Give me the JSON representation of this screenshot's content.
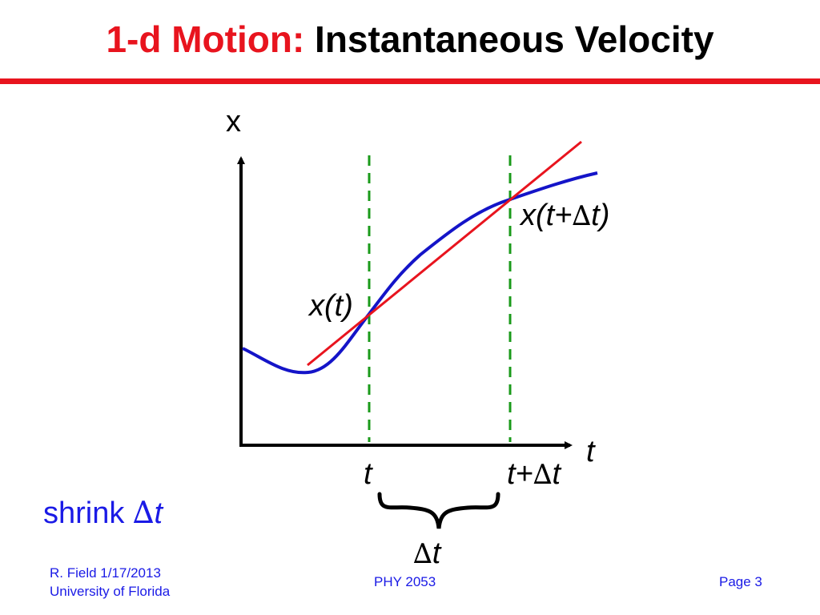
{
  "slide": {
    "title_colored": "1-d Motion:",
    "title_rest": "Instantaneous Velocity",
    "accent_color": "#e8141e",
    "footer_color": "#1a1ae6"
  },
  "diagram": {
    "x_axis_label": "t",
    "y_axis_label": "x",
    "point_label_t": "x(t)",
    "point_label_tdt": "x(t+",
    "point_label_tdt_delta": "∆",
    "point_label_tdt_end": "t)",
    "tick_t": "t",
    "tick_tdt_pre": "t+",
    "tick_tdt_delta": "∆",
    "tick_tdt_post": "t",
    "brace_label_delta": "∆",
    "brace_label_t": "t",
    "curve_color": "#1414c8",
    "secant_color": "#e8141e",
    "guide_color": "#1a9a1a"
  },
  "note": {
    "text": "shrink ",
    "delta": "∆",
    "var": "t"
  },
  "footer": {
    "author_line1": "R. Field 1/17/2013",
    "author_line2": "University of Florida",
    "course": "PHY 2053",
    "page": "Page 3"
  }
}
